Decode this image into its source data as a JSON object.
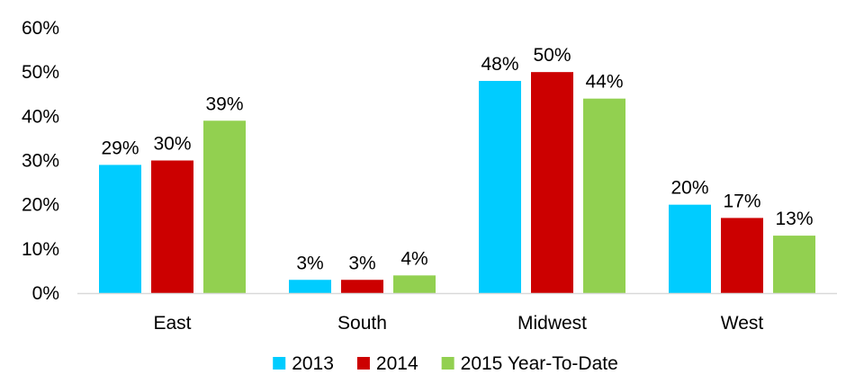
{
  "chart_data": {
    "type": "bar",
    "title": "",
    "xlabel": "",
    "ylabel": "",
    "categories": [
      "East",
      "South",
      "Midwest",
      "West"
    ],
    "series": [
      {
        "name": "2013",
        "color": "#00CCFF",
        "values": [
          29,
          3,
          48,
          20
        ],
        "labels": [
          "29%",
          "3%",
          "48%",
          "20%"
        ]
      },
      {
        "name": "2014",
        "color": "#CC0000",
        "values": [
          30,
          3,
          50,
          17
        ],
        "labels": [
          "30%",
          "3%",
          "50%",
          "17%"
        ]
      },
      {
        "name": "2015 Year-To-Date",
        "color": "#92D050",
        "values": [
          39,
          4,
          44,
          13
        ],
        "labels": [
          "39%",
          "4%",
          "44%",
          "13%"
        ]
      }
    ],
    "ylim": [
      0,
      60
    ],
    "yticks": [
      0,
      10,
      20,
      30,
      40,
      50,
      60
    ],
    "ytick_labels": [
      "0%",
      "10%",
      "20%",
      "30%",
      "40%",
      "50%",
      "60%"
    ],
    "grid": false,
    "legend_position": "bottom-center"
  }
}
